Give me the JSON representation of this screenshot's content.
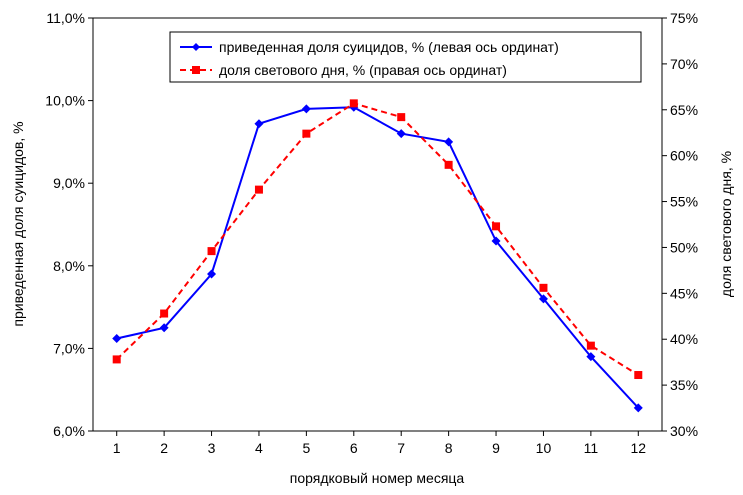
{
  "chart_data": {
    "type": "line",
    "x": [
      1,
      2,
      3,
      4,
      5,
      6,
      7,
      8,
      9,
      10,
      11,
      12
    ],
    "xlabel": "порядковый номер месяца",
    "ylabel_left": "приведенная доля суицидов, %",
    "ylabel_right": "доля светового дня, %",
    "ylim_left": [
      6.0,
      11.0
    ],
    "ylim_right": [
      30,
      75
    ],
    "yticks_left": [
      "6,0%",
      "7,0%",
      "8,0%",
      "9,0%",
      "10,0%",
      "11,0%"
    ],
    "yticks_right": [
      "30%",
      "35%",
      "40%",
      "45%",
      "50%",
      "55%",
      "60%",
      "65%",
      "70%",
      "75%"
    ],
    "xticks": [
      "1",
      "2",
      "3",
      "4",
      "5",
      "6",
      "7",
      "8",
      "9",
      "10",
      "11",
      "12"
    ],
    "grid": false,
    "legend_position": "top-right",
    "series": [
      {
        "name": "приведенная доля суицидов, % (левая ось ординат)",
        "axis": "left",
        "color": "#0000ff",
        "line_style": "solid",
        "marker": "diamond",
        "values": [
          7.12,
          7.25,
          7.9,
          9.72,
          9.9,
          9.92,
          9.6,
          9.5,
          8.3,
          7.6,
          6.9,
          6.28
        ]
      },
      {
        "name": "доля светового дня, % (правая ось ординат)",
        "axis": "right",
        "color": "#ff0000",
        "line_style": "dashed",
        "marker": "square",
        "values": [
          37.8,
          42.8,
          49.6,
          56.3,
          62.4,
          65.7,
          64.2,
          59.0,
          52.3,
          45.6,
          39.3,
          36.1
        ]
      }
    ]
  }
}
